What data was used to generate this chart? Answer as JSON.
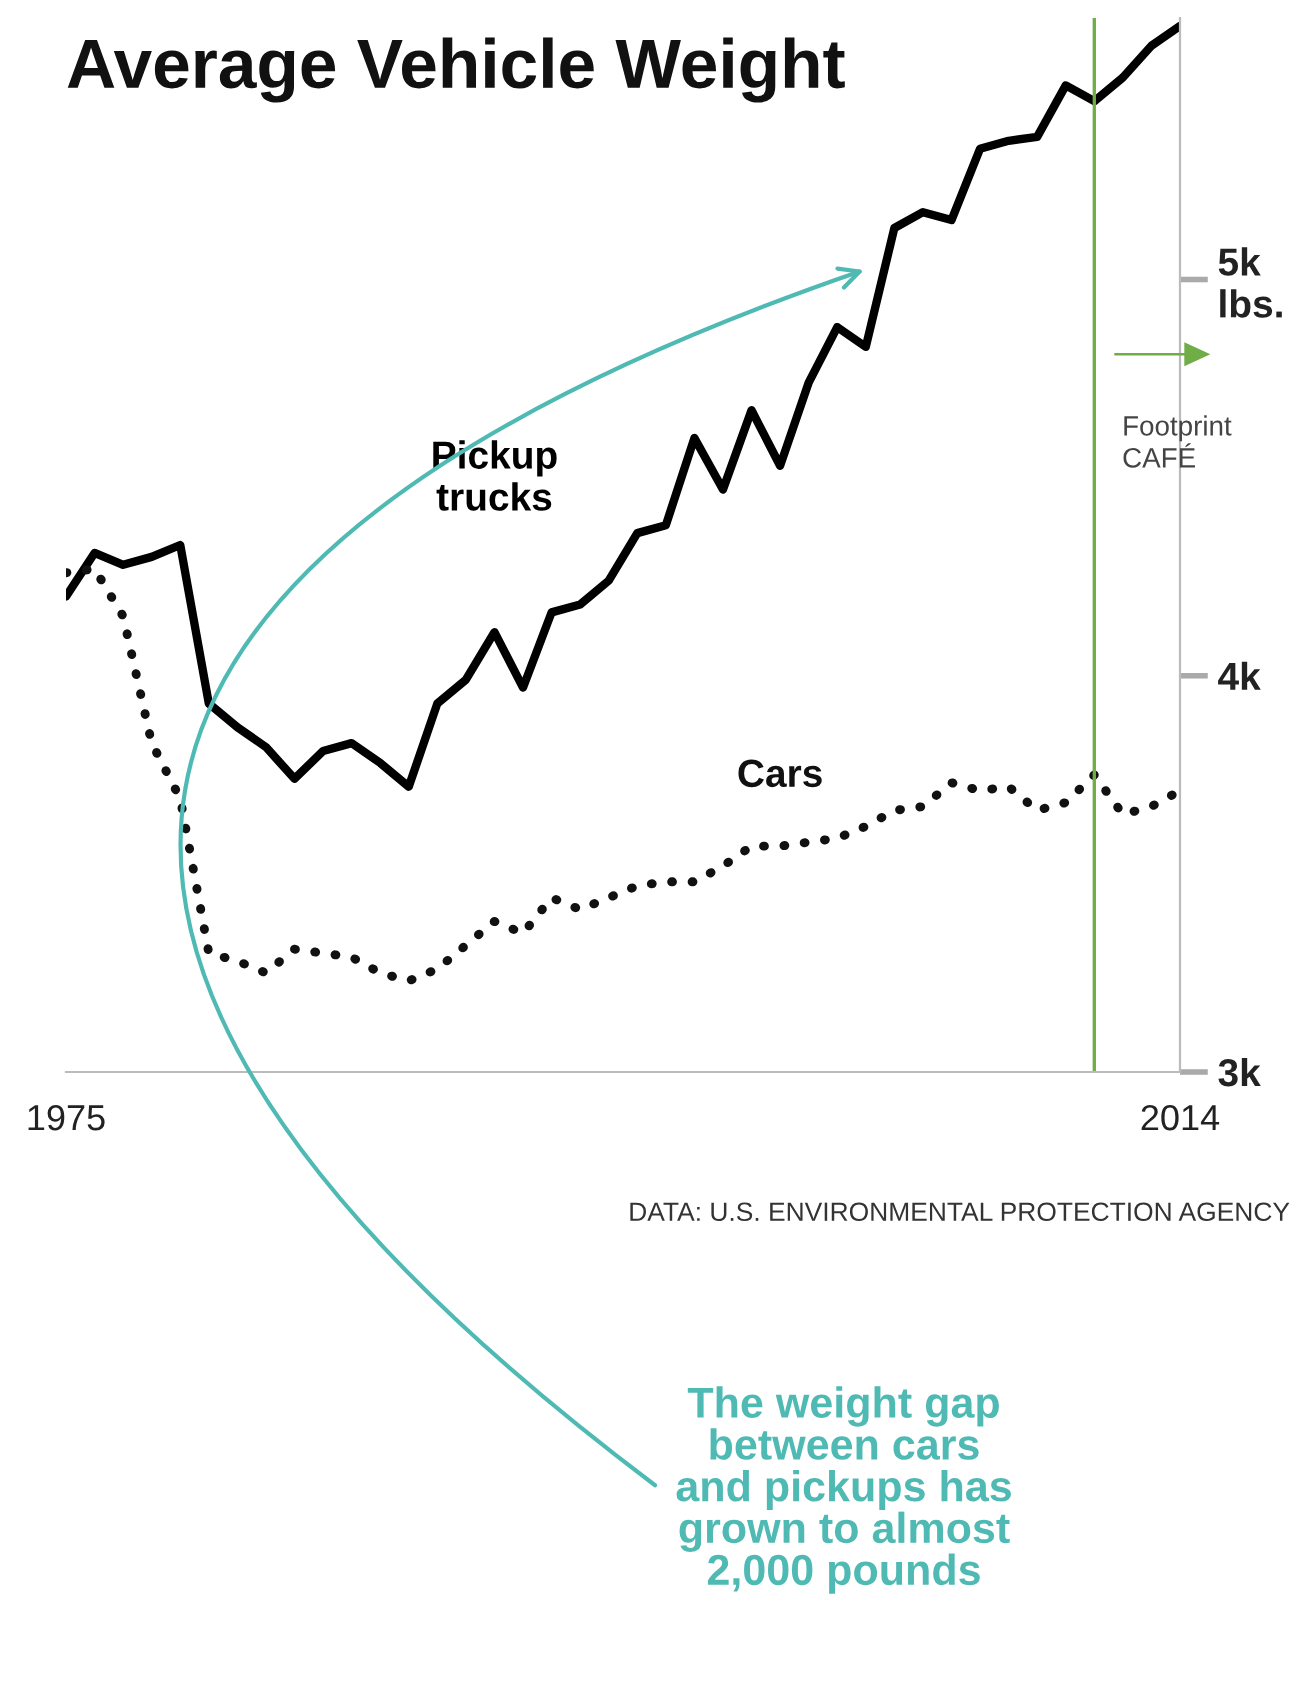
{
  "chart_data": {
    "type": "line",
    "title": "Average Vehicle Weight",
    "x": [
      1975,
      1976,
      1977,
      1978,
      1979,
      1980,
      1981,
      1982,
      1983,
      1984,
      1985,
      1986,
      1987,
      1988,
      1989,
      1990,
      1991,
      1992,
      1993,
      1994,
      1995,
      1996,
      1997,
      1998,
      1999,
      2000,
      2001,
      2002,
      2003,
      2004,
      2005,
      2006,
      2007,
      2008,
      2009,
      2010,
      2011,
      2012,
      2013,
      2014
    ],
    "series": [
      {
        "name": "Pickup\ntrucks",
        "color": "#000000",
        "line_style": "solid",
        "values": [
          4200,
          4310,
          4280,
          4300,
          4330,
          3930,
          3870,
          3820,
          3740,
          3810,
          3830,
          3780,
          3720,
          3930,
          3990,
          4110,
          3970,
          4160,
          4180,
          4240,
          4360,
          4380,
          4600,
          4470,
          4670,
          4530,
          4740,
          4880,
          4830,
          5130,
          5170,
          5150,
          5330,
          5350,
          5360,
          5490,
          5450,
          5510,
          5590,
          5640
        ]
      },
      {
        "name": "Cars",
        "color": "#111111",
        "line_style": "dotted",
        "values": [
          4260,
          4270,
          4150,
          3830,
          3690,
          3300,
          3280,
          3250,
          3310,
          3300,
          3290,
          3250,
          3230,
          3260,
          3320,
          3380,
          3350,
          3440,
          3410,
          3440,
          3470,
          3480,
          3480,
          3520,
          3570,
          3570,
          3580,
          3590,
          3620,
          3660,
          3670,
          3730,
          3710,
          3720,
          3660,
          3680,
          3750,
          3650,
          3670,
          3710
        ]
      }
    ],
    "xlim": [
      1975,
      2014
    ],
    "xticks": [
      1975,
      2014
    ],
    "ylim": [
      3000,
      5660
    ],
    "yticks": [
      {
        "value": 3000,
        "label": "3k"
      },
      {
        "value": 4000,
        "label": "4k"
      },
      {
        "value": 5000,
        "label": "5k\nlbs."
      }
    ],
    "grid": false,
    "legend": false,
    "marker": "none",
    "ref_lines": [
      {
        "axis": "x",
        "value": 2011,
        "label": "Footprint\nCAFÉ",
        "color": "#70ad47"
      }
    ],
    "annotations": [
      "The weight gap\nbetween cars\nand pickups has\ngrown to almost\n2,000 pounds",
      "DATA: U.S. ENVIRONMENTAL PROTECTION AGENCY"
    ]
  }
}
